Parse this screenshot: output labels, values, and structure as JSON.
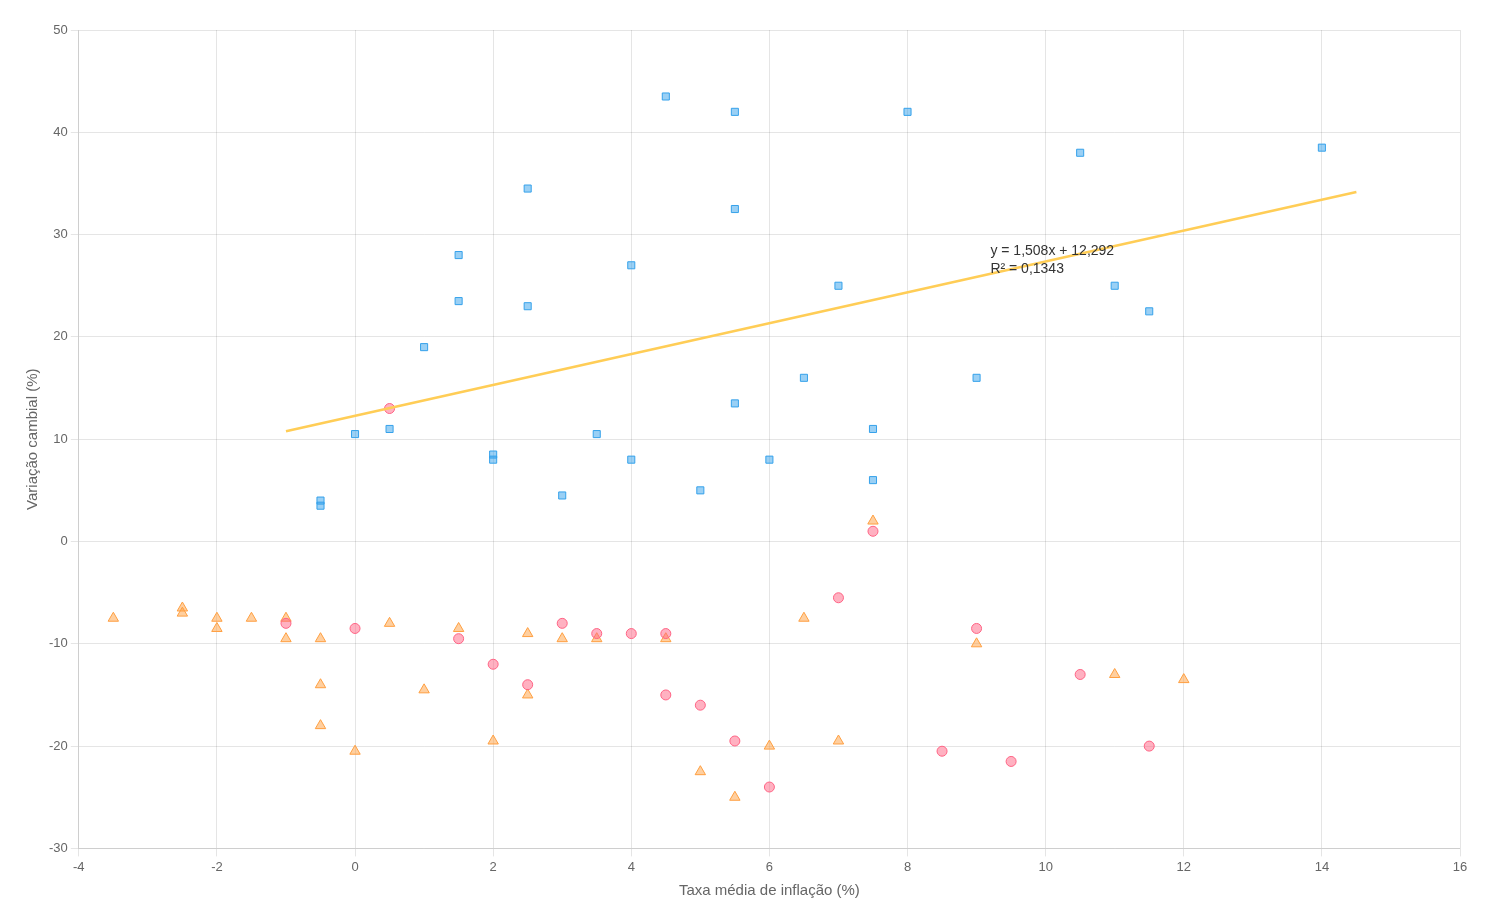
{
  "chart_data": {
    "type": "scatter",
    "x_label": "Taxa média de inflação (%)",
    "y_label": "Variação cambial (%)",
    "xlim": [
      -4,
      16
    ],
    "ylim": [
      -30,
      50
    ],
    "xticks": [
      -4,
      -2,
      0,
      2,
      4,
      6,
      8,
      10,
      12,
      14,
      16
    ],
    "yticks": [
      -30,
      -20,
      -10,
      0,
      10,
      20,
      30,
      40,
      50
    ],
    "grid": true,
    "series": [
      {
        "marker": "square",
        "x": [
          -0.5,
          -0.5,
          0.0,
          0.5,
          1.0,
          1.5,
          1.5,
          2.0,
          2.0,
          2.5,
          2.5,
          3.0,
          3.5,
          4.0,
          4.0,
          4.5,
          5.0,
          5.5,
          5.5,
          5.5,
          6.0,
          6.5,
          7.0,
          7.5,
          7.5,
          8.0,
          9.0,
          10.5,
          11.0,
          11.5,
          14.0
        ],
        "values": [
          4.0,
          3.5,
          10.5,
          11.0,
          19.0,
          28.0,
          23.5,
          8.5,
          8.0,
          34.5,
          23.0,
          4.5,
          10.5,
          27.0,
          8.0,
          43.5,
          5.0,
          42.0,
          32.5,
          13.5,
          8.0,
          16.0,
          25.0,
          11.0,
          6.0,
          42.0,
          16.0,
          38.0,
          25.0,
          22.5,
          38.5
        ]
      },
      {
        "marker": "circle",
        "x": [
          -1.0,
          0.0,
          0.5,
          1.5,
          2.0,
          2.5,
          3.0,
          3.5,
          4.0,
          4.5,
          4.5,
          5.0,
          5.5,
          6.0,
          7.0,
          7.5,
          8.5,
          9.0,
          9.5,
          10.5,
          11.5
        ],
        "values": [
          -8.0,
          -8.5,
          13.0,
          -9.5,
          -12.0,
          -14.0,
          -8.0,
          -9.0,
          -9.0,
          -15.0,
          -9.0,
          -16.0,
          -19.5,
          -24.0,
          -5.5,
          1.0,
          -20.5,
          -8.5,
          -21.5,
          -13.0,
          -20.0
        ]
      },
      {
        "marker": "triangle",
        "x": [
          -3.5,
          -2.5,
          -2.5,
          -2.0,
          -2.0,
          -1.5,
          -1.0,
          -1.0,
          -0.5,
          -0.5,
          -0.5,
          0.0,
          0.5,
          1.0,
          1.5,
          2.0,
          2.5,
          2.5,
          3.0,
          3.5,
          4.5,
          5.0,
          5.5,
          6.0,
          6.5,
          7.0,
          7.5,
          9.0,
          11.0,
          12.0
        ],
        "values": [
          -7.5,
          -6.5,
          -7.0,
          -7.5,
          -8.5,
          -7.5,
          -7.5,
          -9.5,
          -14.0,
          -9.5,
          -18.0,
          -20.5,
          -8.0,
          -14.5,
          -8.5,
          -19.5,
          -15.0,
          -9.0,
          -9.5,
          -9.5,
          -9.5,
          -22.5,
          -25.0,
          -20.0,
          -7.5,
          -19.5,
          2.0,
          -10.0,
          -13.0,
          -13.5
        ]
      },
      {
        "type": "line",
        "x": [
          -1.0,
          14.5
        ],
        "values": [
          10.784,
          34.158
        ]
      }
    ],
    "annotations": [
      {
        "text": "y = 1,508x + 12,292\nR² = 0,1343",
        "x": 9.2,
        "y": 27.5
      }
    ]
  }
}
